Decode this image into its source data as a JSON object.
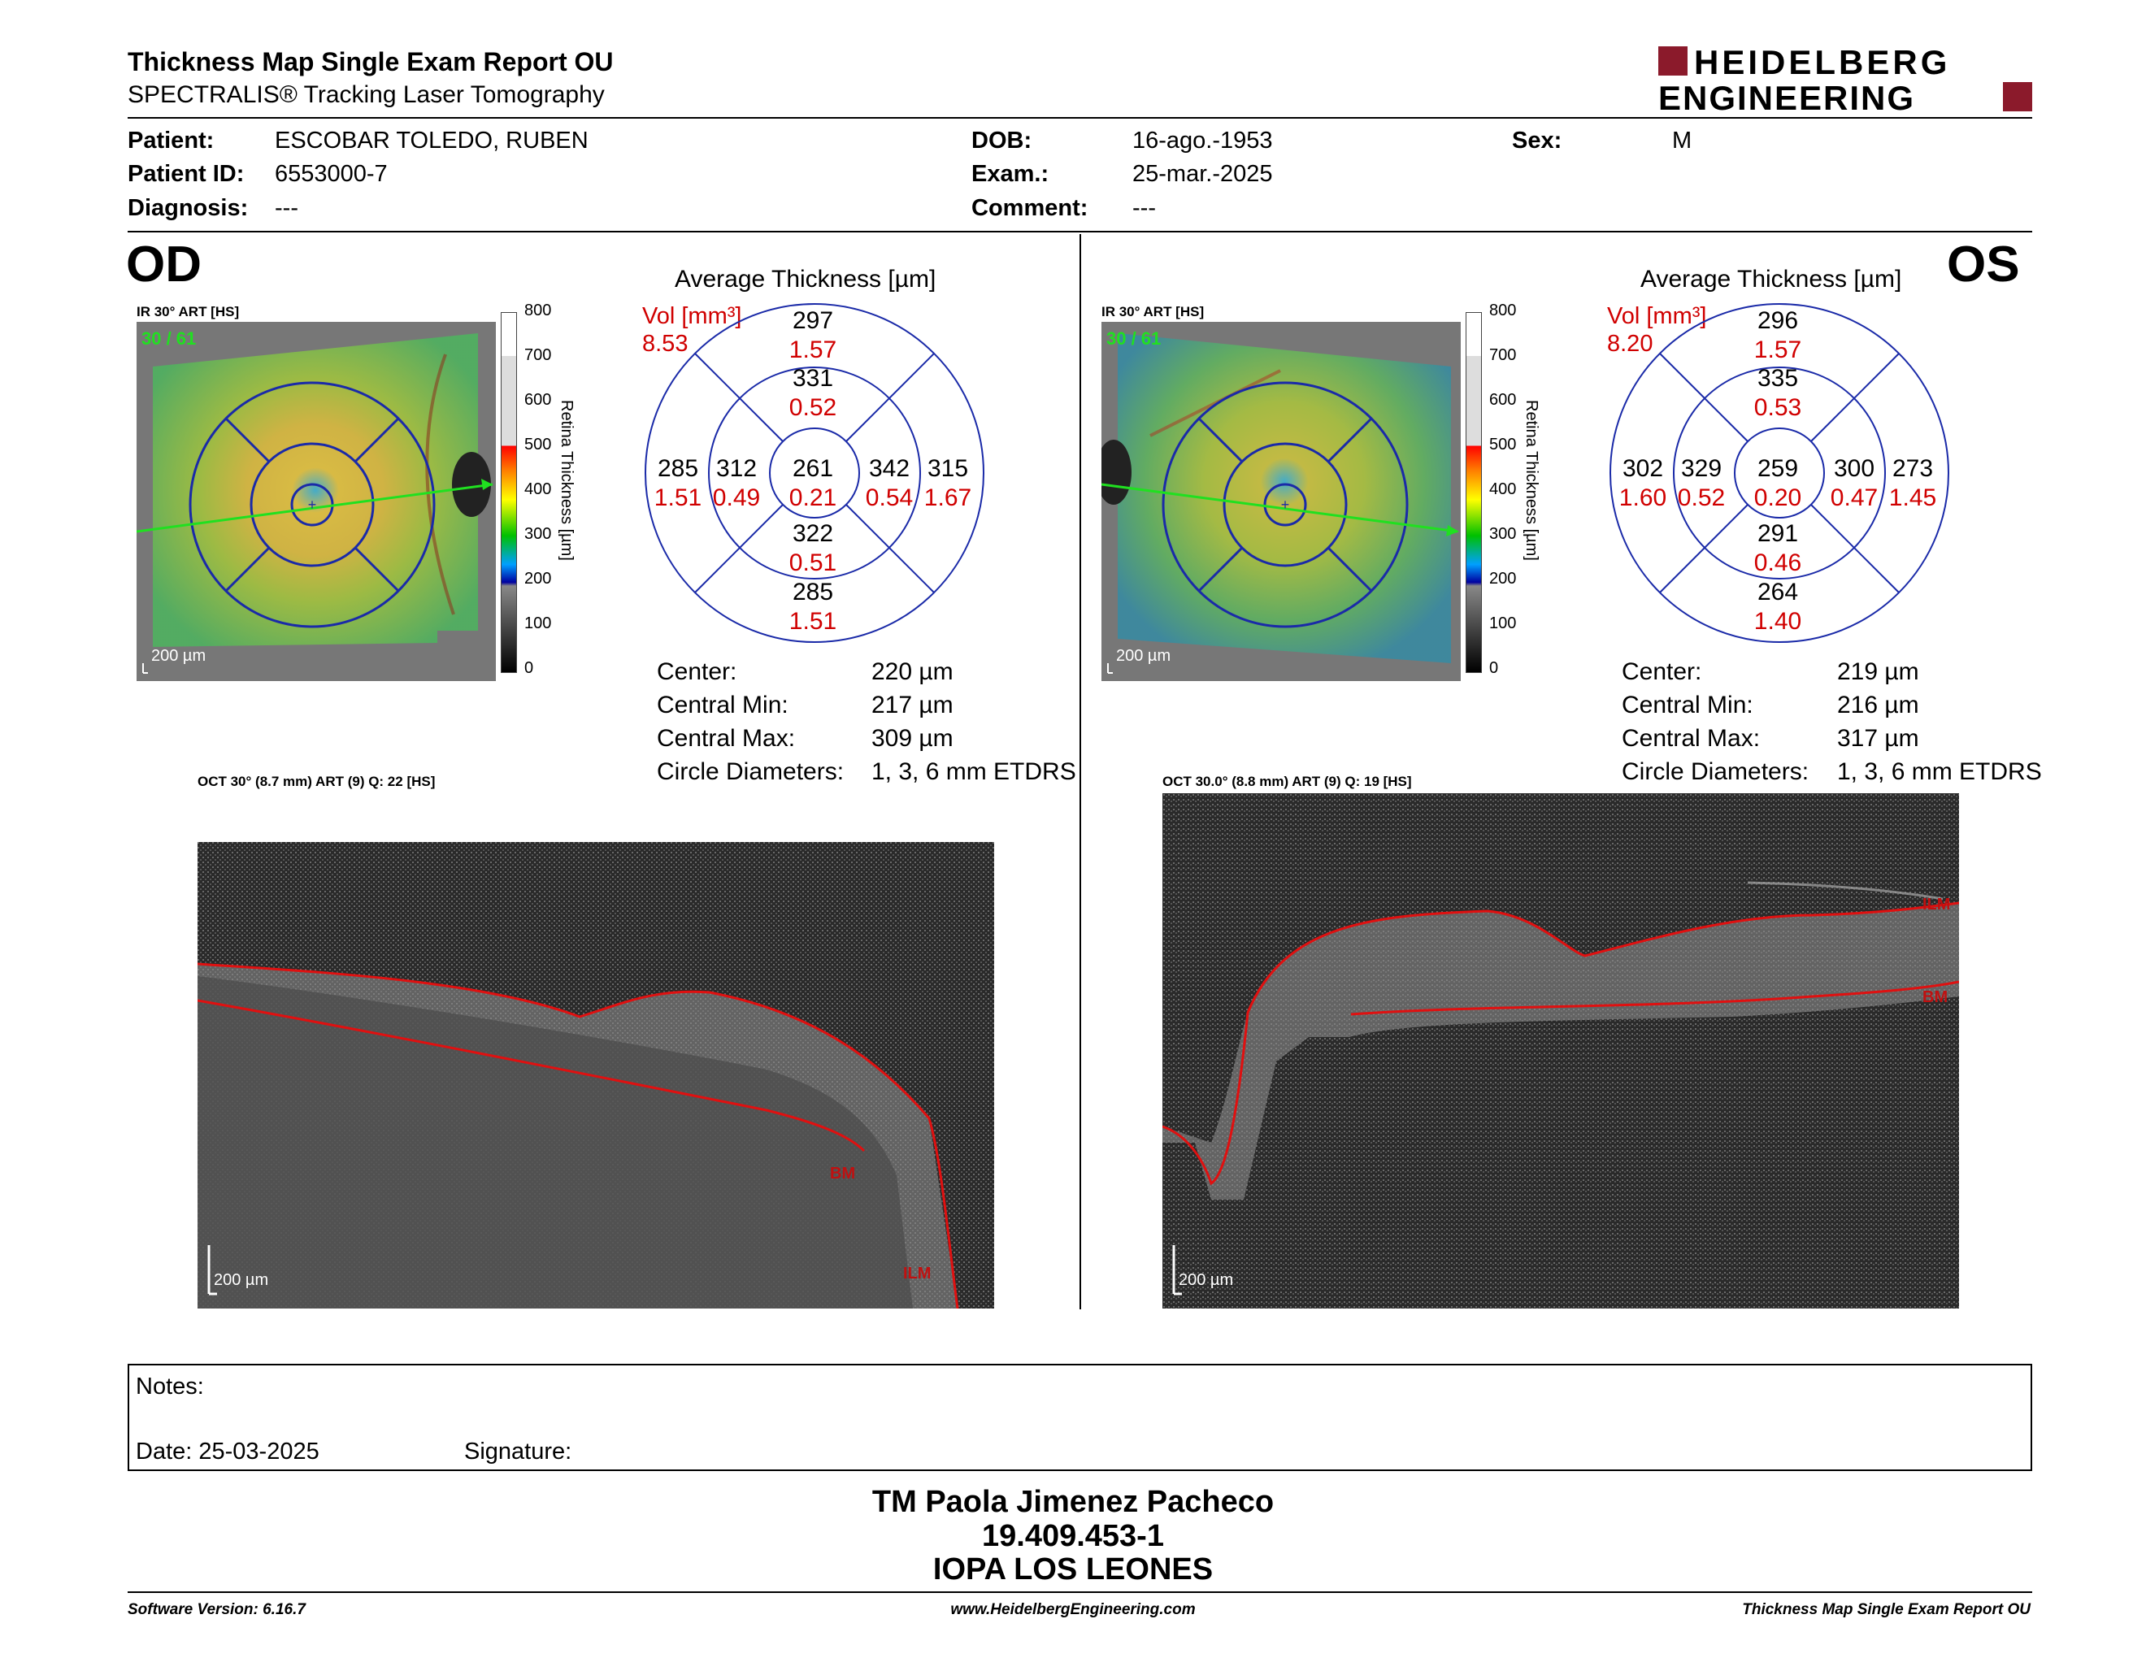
{
  "header": {
    "title": "Thickness Map Single Exam Report OU",
    "subtitle": "SPECTRALIS® Tracking Laser Tomography",
    "logo_line1": "HEIDELBERG",
    "logo_line2": "ENGINEERING",
    "brand_color": "#8b1a2b"
  },
  "patient": {
    "patient_label": "Patient:",
    "patient_value": "ESCOBAR TOLEDO, RUBEN",
    "id_label": "Patient ID:",
    "id_value": "6553000-7",
    "diagnosis_label": "Diagnosis:",
    "diagnosis_value": "---",
    "dob_label": "DOB:",
    "dob_value": "16-ago.-1953",
    "exam_label": "Exam.:",
    "exam_value": "25-mar.-2025",
    "comment_label": "Comment:",
    "comment_value": "---",
    "sex_label": "Sex:",
    "sex_value": "M"
  },
  "scale": {
    "ticks": [
      "800",
      "700",
      "600",
      "500",
      "400",
      "300",
      "200",
      "100",
      "0"
    ],
    "title": "Retina  Thickness [µm]"
  },
  "od": {
    "eye": "OD",
    "ir_label": "IR 30° ART [HS]",
    "frames": "30 / 61",
    "scale_bar": "200 µm",
    "avg_title": "Average Thickness [µm]",
    "vol_label": "Vol [mm³]",
    "vol_value": "8.53",
    "sectors": {
      "center": {
        "t": "261",
        "v": "0.21"
      },
      "inner_sup": {
        "t": "331",
        "v": "0.52"
      },
      "inner_inf": {
        "t": "322",
        "v": "0.51"
      },
      "inner_left": {
        "t": "312",
        "v": "0.49"
      },
      "inner_right": {
        "t": "342",
        "v": "0.54"
      },
      "outer_sup": {
        "t": "297",
        "v": "1.57"
      },
      "outer_inf": {
        "t": "285",
        "v": "1.51"
      },
      "outer_left": {
        "t": "285",
        "v": "1.51"
      },
      "outer_right": {
        "t": "315",
        "v": "1.67"
      }
    },
    "stats": {
      "center_label": "Center:",
      "center_value": "220 µm",
      "min_label": "Central Min:",
      "min_value": "217 µm",
      "max_label": "Central Max:",
      "max_value": "309 µm",
      "diam_label": "Circle Diameters:",
      "diam_value": "1, 3, 6 mm ETDRS"
    },
    "oct_label": "OCT 30° (8.7 mm) ART (9) Q: 22 [HS]",
    "oct_scale": "200 µm",
    "ilm": "ILM",
    "bm": "BM"
  },
  "os": {
    "eye": "OS",
    "ir_label": "IR 30° ART [HS]",
    "frames": "30 / 61",
    "scale_bar": "200 µm",
    "avg_title": "Average Thickness [µm]",
    "vol_label": "Vol [mm³]",
    "vol_value": "8.20",
    "sectors": {
      "center": {
        "t": "259",
        "v": "0.20"
      },
      "inner_sup": {
        "t": "335",
        "v": "0.53"
      },
      "inner_inf": {
        "t": "291",
        "v": "0.46"
      },
      "inner_left": {
        "t": "329",
        "v": "0.52"
      },
      "inner_right": {
        "t": "300",
        "v": "0.47"
      },
      "outer_sup": {
        "t": "296",
        "v": "1.57"
      },
      "outer_inf": {
        "t": "264",
        "v": "1.40"
      },
      "outer_left": {
        "t": "302",
        "v": "1.60"
      },
      "outer_right": {
        "t": "273",
        "v": "1.45"
      }
    },
    "stats": {
      "center_label": "Center:",
      "center_value": "219 µm",
      "min_label": "Central Min:",
      "min_value": "216 µm",
      "max_label": "Central Max:",
      "max_value": "317 µm",
      "diam_label": "Circle Diameters:",
      "diam_value": "1, 3, 6 mm ETDRS"
    },
    "oct_label": "OCT 30.0° (8.8 mm) ART (9) Q: 19 [HS]",
    "oct_scale": "200 µm",
    "ilm": "ILM",
    "bm": "BM"
  },
  "notes": {
    "notes_label": "Notes:",
    "date_label": "Date: 25-03-2025",
    "signature_label": "Signature:"
  },
  "signoff": {
    "name": "TM Paola Jimenez Pacheco",
    "rut": "19.409.453-1",
    "institution": "IOPA LOS LEONES"
  },
  "footer": {
    "version": "Software Version: 6.16.7",
    "website": "www.HeidelbergEngineering.com",
    "report": "Thickness Map Single Exam Report OU"
  }
}
